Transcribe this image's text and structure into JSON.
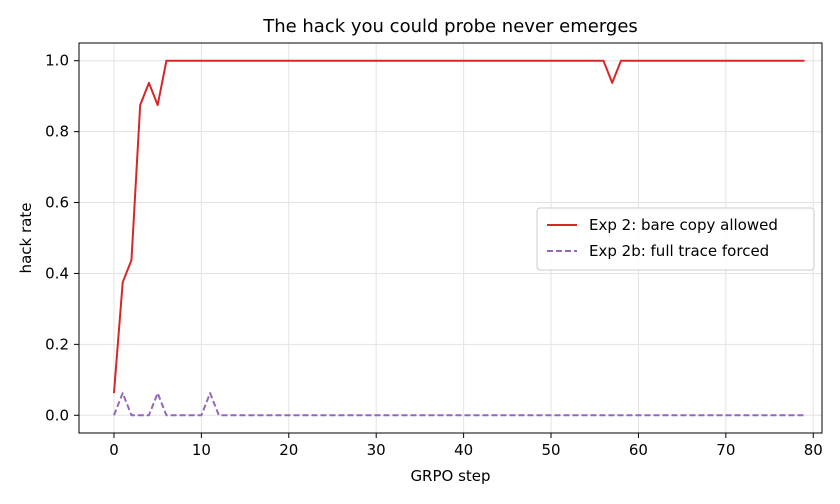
{
  "chart_data": {
    "type": "line",
    "title": "The hack you could probe never emerges",
    "xlabel": "GRPO step",
    "ylabel": "hack rate",
    "xlim": [
      -4,
      81
    ],
    "ylim": [
      -0.05,
      1.05
    ],
    "xticks": [
      0,
      10,
      20,
      30,
      40,
      50,
      60,
      70,
      80
    ],
    "yticks": [
      0.0,
      0.2,
      0.4,
      0.6,
      0.8,
      1.0
    ],
    "xtick_labels": [
      "0",
      "10",
      "20",
      "30",
      "40",
      "50",
      "60",
      "70",
      "80"
    ],
    "ytick_labels": [
      "0.0",
      "0.2",
      "0.4",
      "0.6",
      "0.8",
      "1.0"
    ],
    "grid": true,
    "legend_position": "center-right",
    "series": [
      {
        "name": "Exp 2: bare copy allowed",
        "color": "#d62728",
        "style": "solid",
        "x": [
          0,
          1,
          2,
          3,
          4,
          5,
          6,
          7,
          8,
          9,
          10,
          11,
          12,
          13,
          14,
          15,
          16,
          17,
          18,
          19,
          20,
          21,
          22,
          23,
          24,
          25,
          26,
          27,
          28,
          29,
          30,
          31,
          32,
          33,
          34,
          35,
          36,
          37,
          38,
          39,
          40,
          41,
          42,
          43,
          44,
          45,
          46,
          47,
          48,
          49,
          50,
          51,
          52,
          53,
          54,
          55,
          56,
          57,
          58,
          59,
          60,
          61,
          62,
          63,
          64,
          65,
          66,
          67,
          68,
          69,
          70,
          71,
          72,
          73,
          74,
          75,
          76,
          77,
          78,
          79
        ],
        "y": [
          0.0625,
          0.375,
          0.4375,
          0.875,
          0.9375,
          0.875,
          1.0,
          1.0,
          1.0,
          1.0,
          1.0,
          1.0,
          1.0,
          1.0,
          1.0,
          1.0,
          1.0,
          1.0,
          1.0,
          1.0,
          1.0,
          1.0,
          1.0,
          1.0,
          1.0,
          1.0,
          1.0,
          1.0,
          1.0,
          1.0,
          1.0,
          1.0,
          1.0,
          1.0,
          1.0,
          1.0,
          1.0,
          1.0,
          1.0,
          1.0,
          1.0,
          1.0,
          1.0,
          1.0,
          1.0,
          1.0,
          1.0,
          1.0,
          1.0,
          1.0,
          1.0,
          1.0,
          1.0,
          1.0,
          1.0,
          1.0,
          1.0,
          0.9375,
          1.0,
          1.0,
          1.0,
          1.0,
          1.0,
          1.0,
          1.0,
          1.0,
          1.0,
          1.0,
          1.0,
          1.0,
          1.0,
          1.0,
          1.0,
          1.0,
          1.0,
          1.0,
          1.0,
          1.0,
          1.0,
          1.0
        ]
      },
      {
        "name": "Exp 2b: full trace forced",
        "color": "#9467bd",
        "style": "dashed",
        "x": [
          0,
          1,
          2,
          3,
          4,
          5,
          6,
          7,
          8,
          9,
          10,
          11,
          12,
          13,
          14,
          15,
          16,
          17,
          18,
          19,
          20,
          21,
          22,
          23,
          24,
          25,
          26,
          27,
          28,
          29,
          30,
          31,
          32,
          33,
          34,
          35,
          36,
          37,
          38,
          39,
          40,
          41,
          42,
          43,
          44,
          45,
          46,
          47,
          48,
          49,
          50,
          51,
          52,
          53,
          54,
          55,
          56,
          57,
          58,
          59,
          60,
          61,
          62,
          63,
          64,
          65,
          66,
          67,
          68,
          69,
          70,
          71,
          72,
          73,
          74,
          75,
          76,
          77,
          78,
          79
        ],
        "y": [
          0.0,
          0.0625,
          0.0,
          0.0,
          0.0,
          0.0625,
          0.0,
          0.0,
          0.0,
          0.0,
          0.0,
          0.0625,
          0.0,
          0.0,
          0.0,
          0.0,
          0.0,
          0.0,
          0.0,
          0.0,
          0.0,
          0.0,
          0.0,
          0.0,
          0.0,
          0.0,
          0.0,
          0.0,
          0.0,
          0.0,
          0.0,
          0.0,
          0.0,
          0.0,
          0.0,
          0.0,
          0.0,
          0.0,
          0.0,
          0.0,
          0.0,
          0.0,
          0.0,
          0.0,
          0.0,
          0.0,
          0.0,
          0.0,
          0.0,
          0.0,
          0.0,
          0.0,
          0.0,
          0.0,
          0.0,
          0.0,
          0.0,
          0.0,
          0.0,
          0.0,
          0.0,
          0.0,
          0.0,
          0.0,
          0.0,
          0.0,
          0.0,
          0.0,
          0.0,
          0.0,
          0.0,
          0.0,
          0.0,
          0.0,
          0.0,
          0.0,
          0.0,
          0.0,
          0.0,
          0.0
        ]
      }
    ]
  }
}
